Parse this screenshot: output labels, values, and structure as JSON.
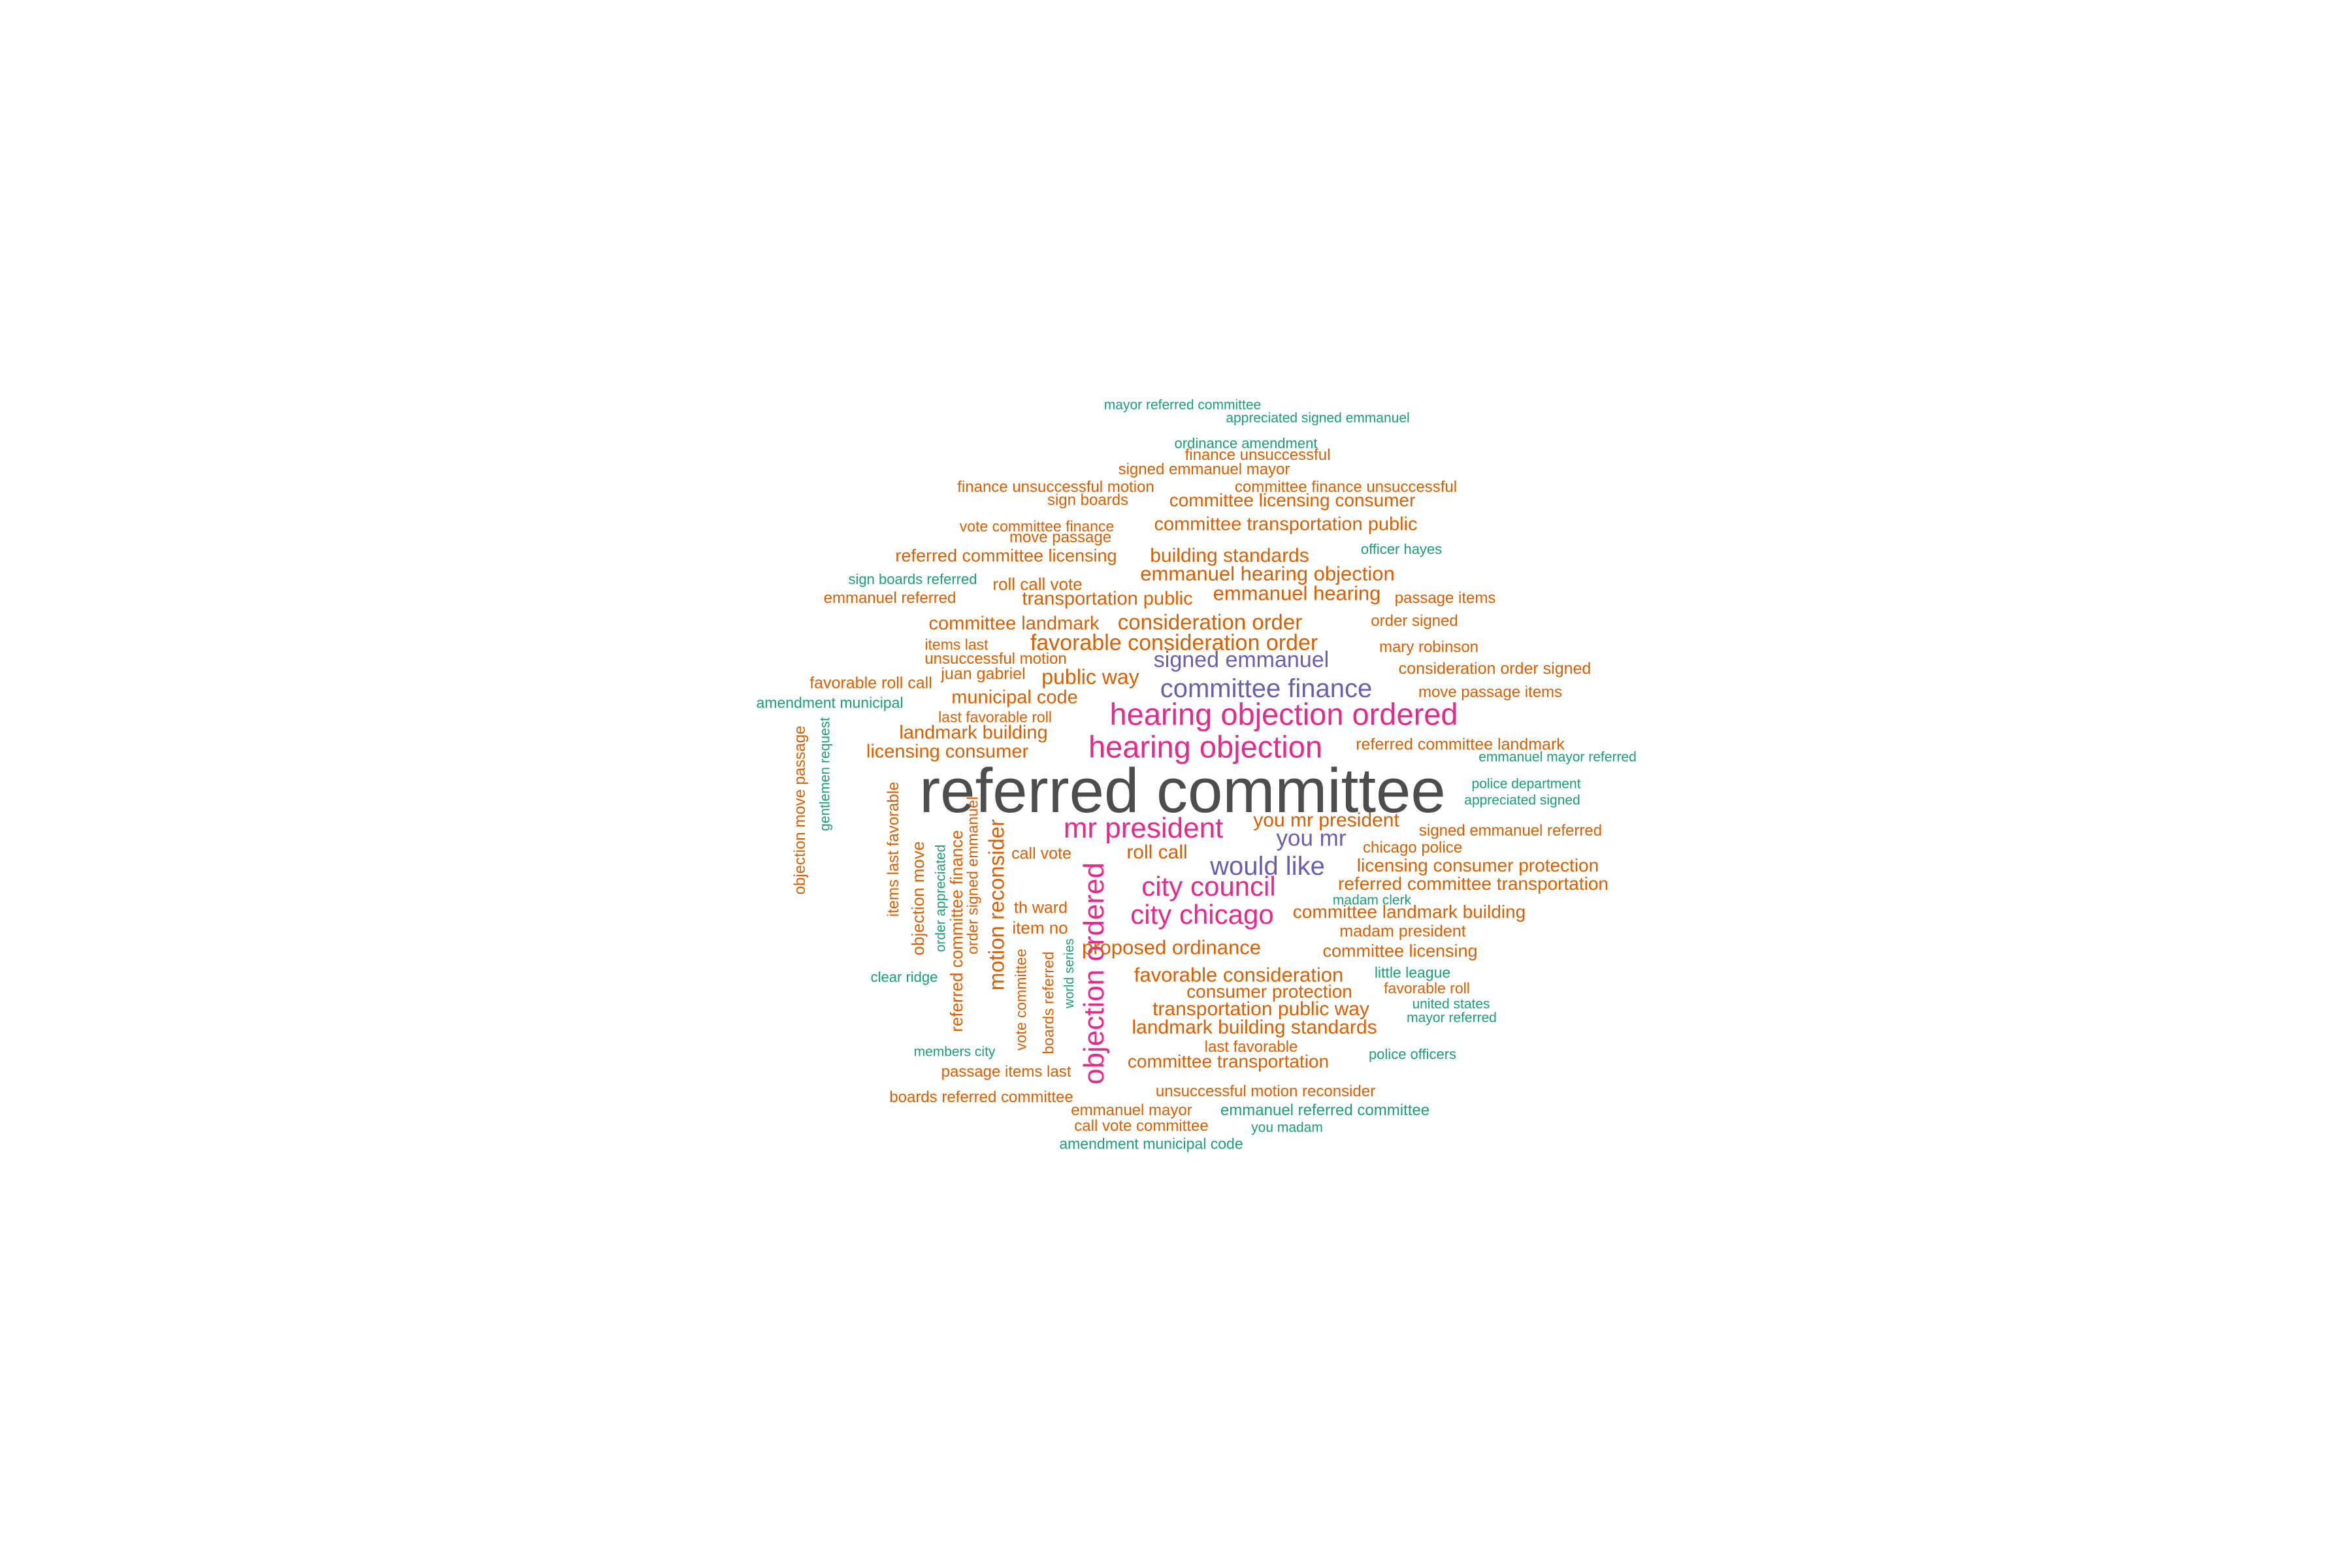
{
  "palette": {
    "gray": "#4d4d4d",
    "pink": "#e7298a",
    "purple": "#6a5fae",
    "orange": "#d95f02",
    "green": "#1b9e77"
  },
  "words": [
    "referred committee",
    "hearing objection ordered",
    "hearing objection",
    "mr president",
    "objection ordered",
    "city council",
    "city chicago",
    "committee finance",
    "would like",
    "signed emmanuel",
    "you mr",
    "favorable consideration order",
    "consideration order",
    "public way",
    "emmanuel hearing objection",
    "emmanuel hearing",
    "committee landmark",
    "municipal code",
    "landmark building",
    "licensing consumer",
    "building standards",
    "committee transportation public",
    "transportation public",
    "referred committee licensing",
    "motion reconsider",
    "roll call",
    "you mr president",
    "proposed ordinance",
    "favorable consideration",
    "consumer protection",
    "transportation public way",
    "landmark building standards",
    "committee transportation",
    "licensing consumer protection",
    "referred committee transportation",
    "committee landmark building",
    "committee licensing",
    "referred committee landmark",
    "mayor referred committee",
    "appreciated signed emmanuel",
    "ordinance amendment",
    "finance unsuccessful",
    "signed emmanuel mayor",
    "finance unsuccessful motion",
    "committee finance unsuccessful",
    "sign boards",
    "committee licensing consumer",
    "vote committee finance",
    "move passage",
    "officer hayes",
    "sign boards referred",
    "roll call vote",
    "emmanuel referred",
    "passage items",
    "order signed",
    "items last",
    "unsuccessful motion",
    "juan gabriel",
    "mary robinson",
    "consideration order signed",
    "favorable roll call",
    "move passage items",
    "amendment municipal",
    "last favorable roll",
    "emmanuel mayor referred",
    "police department",
    "appreciated signed",
    "signed emmanuel referred",
    "objection move passage",
    "gentlemen request",
    "items last favorable",
    "objection move",
    "order appreciated",
    "referred committee finance",
    "order signed emmanuel",
    "call vote",
    "chicago police",
    "th ward",
    "item no",
    "madam clerk",
    "madam president",
    "vote committee",
    "boards referred",
    "world series",
    "clear ridge",
    "little league",
    "favorable roll",
    "united states",
    "mayor referred",
    "members city",
    "last favorable",
    "police officers",
    "passage items last",
    "unsuccessful motion reconsider",
    "boards referred committee",
    "emmanuel mayor",
    "emmanuel referred committee",
    "call vote committee",
    "you madam",
    "amendment municipal code"
  ]
}
